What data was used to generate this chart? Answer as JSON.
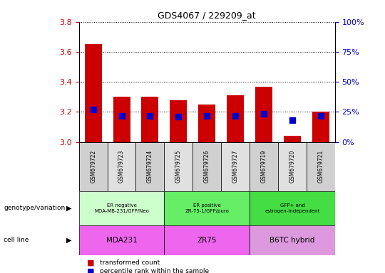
{
  "title": "GDS4067 / 229209_at",
  "samples": [
    "GSM679722",
    "GSM679723",
    "GSM679724",
    "GSM679725",
    "GSM679726",
    "GSM679727",
    "GSM679719",
    "GSM679720",
    "GSM679721"
  ],
  "red_values": [
    3.65,
    3.3,
    3.3,
    3.28,
    3.25,
    3.31,
    3.37,
    3.04,
    3.2
  ],
  "blue_values": [
    3.215,
    3.175,
    3.175,
    3.17,
    3.175,
    3.175,
    3.19,
    3.145,
    3.175
  ],
  "ylim": [
    3.0,
    3.8
  ],
  "yticks": [
    3.0,
    3.2,
    3.4,
    3.6,
    3.8
  ],
  "right_yticks": [
    0,
    25,
    50,
    75,
    100
  ],
  "right_ylim": [
    0,
    100
  ],
  "groups": [
    {
      "label": "ER negative\nMDA-MB-231/GFP/Neo",
      "start": 0,
      "end": 3,
      "color": "#ccffcc"
    },
    {
      "label": "ER positive\nZR-75-1/GFP/puro",
      "start": 3,
      "end": 6,
      "color": "#66ee66"
    },
    {
      "label": "GFP+ and\nestrogen-independent",
      "start": 6,
      "end": 9,
      "color": "#44dd44"
    }
  ],
  "cell_lines": [
    {
      "label": "MDA231",
      "start": 0,
      "end": 3,
      "color": "#ee66ee"
    },
    {
      "label": "ZR75",
      "start": 3,
      "end": 6,
      "color": "#ee66ee"
    },
    {
      "label": "B6TC hybrid",
      "start": 6,
      "end": 9,
      "color": "#dd99dd"
    }
  ],
  "bar_color": "#cc0000",
  "dot_color": "#0000cc",
  "bar_width": 0.6,
  "dot_size": 30,
  "grid_color": "black",
  "bg_color": "white",
  "tick_label_color_left": "#cc0000",
  "tick_label_color_right": "#0000cc",
  "sample_box_colors": [
    "#d0d0d0",
    "#e0e0e0",
    "#d0d0d0",
    "#e0e0e0",
    "#d0d0d0",
    "#e0e0e0",
    "#d0d0d0",
    "#e0e0e0",
    "#d0d0d0"
  ]
}
